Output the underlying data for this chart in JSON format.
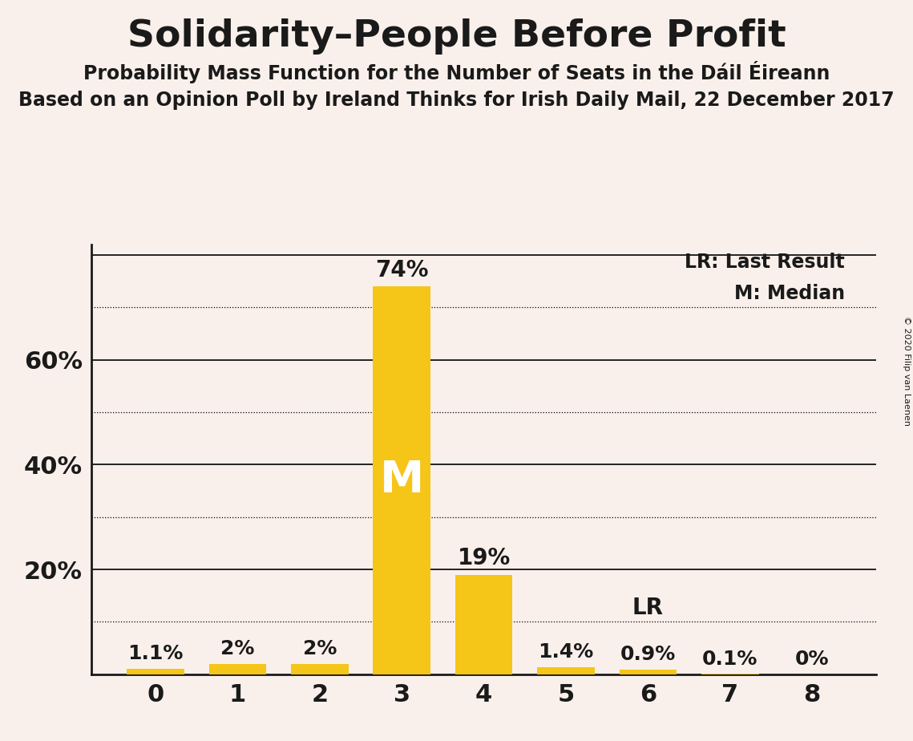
{
  "title": "Solidarity–People Before Profit",
  "subtitle1": "Probability Mass Function for the Number of Seats in the Dáil Éireann",
  "subtitle2": "Based on an Opinion Poll by Ireland Thinks for Irish Daily Mail, 22 December 2017",
  "copyright": "© 2020 Filip van Laenen",
  "categories": [
    0,
    1,
    2,
    3,
    4,
    5,
    6,
    7,
    8
  ],
  "values": [
    1.1,
    2.0,
    2.0,
    74.0,
    19.0,
    1.4,
    0.9,
    0.1,
    0.0
  ],
  "bar_color": "#F5C518",
  "background_color": "#FAF0EB",
  "text_color": "#1a1a1a",
  "median_bar": 3,
  "last_result_bar": 6,
  "ylim": [
    0,
    82
  ],
  "legend_lr": "LR: Last Result",
  "legend_m": "M: Median",
  "median_label": "M",
  "lr_label": "LR",
  "bar_labels": [
    "1.1%",
    "2%",
    "2%",
    "74%",
    "19%",
    "1.4%",
    "0.9%",
    "0.1%",
    "0%"
  ],
  "solid_lines": [
    20,
    40,
    60,
    80
  ],
  "dotted_lines": [
    10,
    30,
    50,
    70
  ],
  "ytick_positions": [
    20,
    40,
    60
  ],
  "ytick_labels": [
    "20%",
    "40%",
    "60%"
  ]
}
